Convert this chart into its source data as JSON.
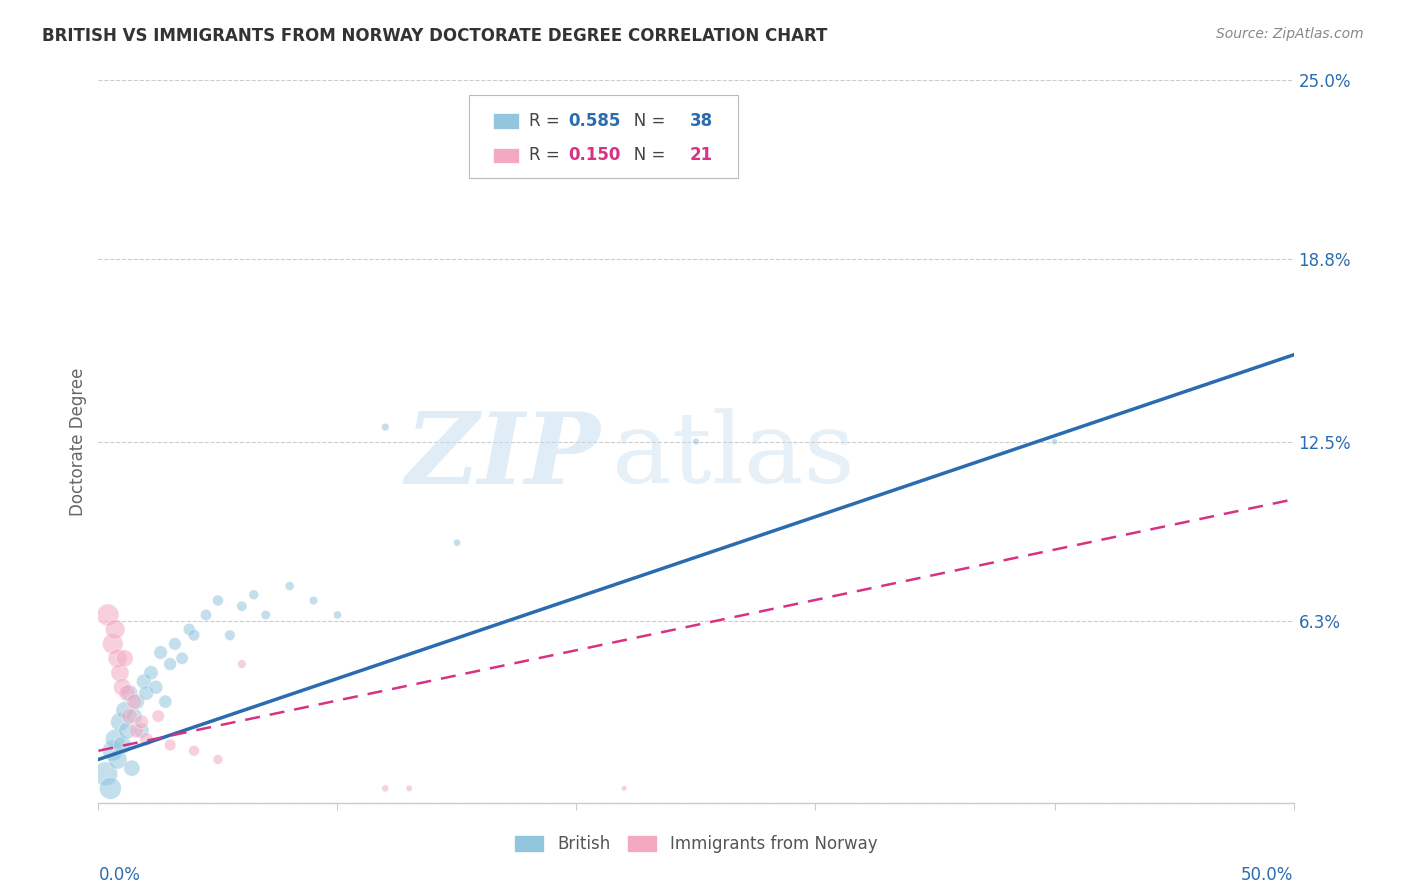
{
  "title": "BRITISH VS IMMIGRANTS FROM NORWAY DOCTORATE DEGREE CORRELATION CHART",
  "source": "Source: ZipAtlas.com",
  "ylabel": "Doctorate Degree",
  "R_british": 0.585,
  "N_british": 38,
  "R_norway": 0.15,
  "N_norway": 21,
  "blue_color": "#92c5de",
  "pink_color": "#f4a9c1",
  "blue_line_color": "#2b6cb0",
  "pink_line_color": "#d63384",
  "watermark_zip": "ZIP",
  "watermark_atlas": "atlas",
  "xlim": [
    0.0,
    0.5
  ],
  "ylim": [
    0.0,
    0.25
  ],
  "right_ytick_vals": [
    0.0,
    0.063,
    0.125,
    0.188,
    0.25
  ],
  "right_ytick_labels": [
    "",
    "6.3%",
    "12.5%",
    "18.8%",
    "25.0%"
  ],
  "blue_scatter_x": [
    0.003,
    0.005,
    0.006,
    0.007,
    0.008,
    0.009,
    0.01,
    0.011,
    0.012,
    0.013,
    0.014,
    0.015,
    0.016,
    0.018,
    0.019,
    0.02,
    0.022,
    0.024,
    0.026,
    0.028,
    0.03,
    0.032,
    0.035,
    0.038,
    0.04,
    0.045,
    0.05,
    0.055,
    0.06,
    0.065,
    0.07,
    0.08,
    0.09,
    0.1,
    0.12,
    0.15,
    0.25,
    0.4
  ],
  "blue_scatter_y": [
    0.01,
    0.005,
    0.018,
    0.022,
    0.015,
    0.028,
    0.02,
    0.032,
    0.025,
    0.038,
    0.012,
    0.03,
    0.035,
    0.025,
    0.042,
    0.038,
    0.045,
    0.04,
    0.052,
    0.035,
    0.048,
    0.055,
    0.05,
    0.06,
    0.058,
    0.065,
    0.07,
    0.058,
    0.068,
    0.072,
    0.065,
    0.075,
    0.07,
    0.065,
    0.13,
    0.09,
    0.125,
    0.125
  ],
  "blue_scatter_sizes": [
    300,
    250,
    220,
    200,
    190,
    180,
    170,
    160,
    150,
    140,
    135,
    130,
    125,
    120,
    115,
    110,
    105,
    100,
    95,
    90,
    85,
    82,
    78,
    74,
    70,
    66,
    62,
    58,
    54,
    50,
    46,
    42,
    38,
    34,
    30,
    26,
    22,
    18
  ],
  "pink_scatter_x": [
    0.004,
    0.006,
    0.007,
    0.008,
    0.009,
    0.01,
    0.011,
    0.012,
    0.013,
    0.015,
    0.016,
    0.018,
    0.02,
    0.025,
    0.03,
    0.04,
    0.05,
    0.06,
    0.12,
    0.13,
    0.22
  ],
  "pink_scatter_y": [
    0.065,
    0.055,
    0.06,
    0.05,
    0.045,
    0.04,
    0.05,
    0.038,
    0.03,
    0.035,
    0.025,
    0.028,
    0.022,
    0.03,
    0.02,
    0.018,
    0.015,
    0.048,
    0.005,
    0.005,
    0.005
  ],
  "pink_scatter_sizes": [
    250,
    220,
    200,
    185,
    170,
    160,
    150,
    140,
    130,
    120,
    110,
    100,
    90,
    80,
    70,
    60,
    50,
    40,
    25,
    20,
    15
  ],
  "blue_line_x0": 0.0,
  "blue_line_x1": 0.5,
  "blue_line_y0": 0.015,
  "blue_line_y1": 0.155,
  "pink_line_x0": 0.0,
  "pink_line_x1": 0.5,
  "pink_line_y0": 0.018,
  "pink_line_y1": 0.105
}
